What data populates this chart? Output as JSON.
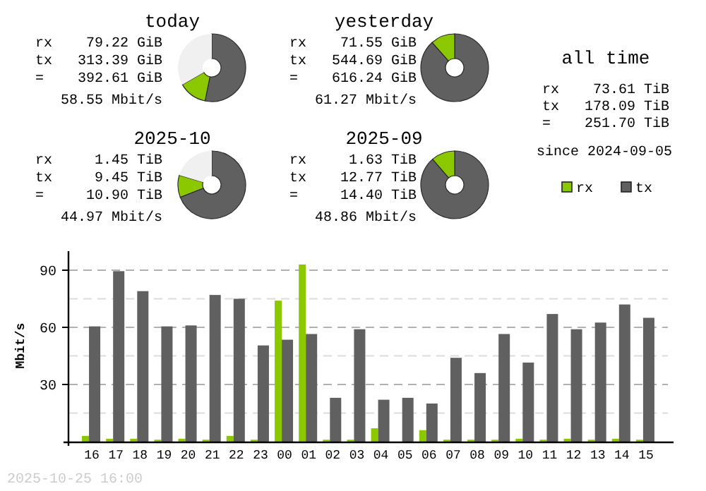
{
  "chart_data": [
    {
      "type": "donut",
      "title": "today",
      "categories": [
        null,
        null,
        null
      ],
      "values": [
        53.2,
        13.5,
        33.3
      ],
      "colors": [
        "#606060",
        "#8cc800",
        "#f0f0f0"
      ],
      "annotations": [
        "rx",
        "79.22 GiB",
        "tx",
        "313.39 GiB",
        "=",
        "392.61 GiB",
        "58.55 Mbit/s"
      ]
    },
    {
      "type": "donut",
      "title": "yesterday",
      "categories": [
        null,
        null,
        null
      ],
      "values": [
        88.4,
        11.6,
        0
      ],
      "colors": [
        "#606060",
        "#8cc800",
        "#f0f0f0"
      ],
      "annotations": [
        "rx",
        "71.55 GiB",
        "tx",
        "544.69 GiB",
        "=",
        "616.24 GiB",
        "61.27 Mbit/s"
      ]
    },
    {
      "type": "donut",
      "title": "2025-10",
      "categories": [
        null,
        null,
        null
      ],
      "values": [
        69.0,
        10.6,
        20.4
      ],
      "colors": [
        "#606060",
        "#8cc800",
        "#f0f0f0"
      ],
      "annotations": [
        "rx",
        "1.45 TiB",
        "tx",
        "9.45 TiB",
        "=",
        "10.90 TiB",
        "44.97 Mbit/s"
      ]
    },
    {
      "type": "donut",
      "title": "2025-09",
      "categories": [
        null,
        null,
        null
      ],
      "values": [
        88.7,
        11.3,
        0
      ],
      "colors": [
        "#606060",
        "#8cc800",
        "#f0f0f0"
      ],
      "annotations": [
        "rx",
        "1.63 TiB",
        "tx",
        "12.77 TiB",
        "=",
        "14.40 TiB",
        "48.86 Mbit/s"
      ]
    },
    {
      "type": "other",
      "title": "all time",
      "annotations": [
        "rx",
        "73.61 TiB",
        "tx",
        "178.09 TiB",
        "=",
        "251.70 TiB",
        "since 2024-09-05"
      ]
    },
    {
      "type": "bar",
      "ylabel": "Mbit/s",
      "categories": [
        "16",
        "17",
        "18",
        "19",
        "20",
        "21",
        "22",
        "23",
        "00",
        "01",
        "02",
        "03",
        "04",
        "05",
        "06",
        "07",
        "08",
        "09",
        "10",
        "11",
        "12",
        "13",
        "14",
        "15"
      ],
      "series": [
        {
          "name": "rx",
          "color": "#8cc800",
          "values": [
            3,
            1.5,
            1.5,
            1,
            1.5,
            1,
            3,
            1,
            74,
            93,
            1,
            1,
            7,
            0,
            6,
            1,
            1,
            1,
            1.5,
            1,
            1.5,
            1,
            1.5,
            1
          ]
        },
        {
          "name": "tx",
          "color": "#606060",
          "values": [
            60.5,
            89.5,
            79,
            60.5,
            61,
            77,
            75,
            50.5,
            53.5,
            56.5,
            23,
            59,
            22,
            23,
            20,
            44,
            36,
            56.5,
            41.5,
            67,
            59,
            62.5,
            72,
            65
          ]
        }
      ],
      "ylim": [
        0,
        100
      ],
      "yticks": [
        {
          "value": 15,
          "label": null
        },
        30,
        {
          "value": 45,
          "label": null
        },
        60,
        {
          "value": 75,
          "label": null
        },
        90
      ],
      "grid": "y",
      "legend": "top right",
      "annotations": [
        "2025-10-25 16:00"
      ]
    }
  ]
}
